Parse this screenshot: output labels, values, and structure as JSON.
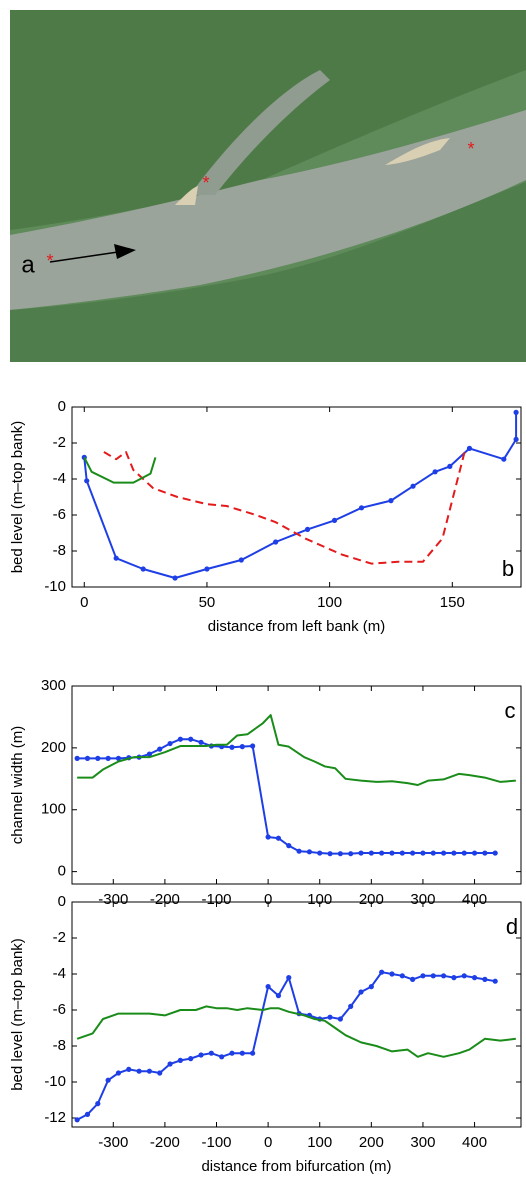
{
  "panel_a": {
    "label": "a"
  },
  "chart_data": [
    {
      "type": "line",
      "panel_label": "b",
      "xlabel": "distance from left bank (m)",
      "ylabel": "bed level (m–top bank)",
      "xlim": [
        -5,
        178
      ],
      "xticks": [
        0,
        50,
        100,
        150
      ],
      "ylim": [
        -10,
        0
      ],
      "yticks": [
        -10,
        -8,
        -6,
        -4,
        -2,
        0
      ],
      "grid": false,
      "series": [
        {
          "color": "#1f3fe6",
          "markers": true,
          "dash": false,
          "x": [
            0,
            1,
            13,
            24,
            37,
            50,
            64,
            78,
            91,
            102,
            113,
            125,
            134,
            143,
            149,
            157,
            171,
            176,
            176
          ],
          "values": [
            -2.8,
            -4.1,
            -8.4,
            -9.0,
            -9.5,
            -9.0,
            -8.5,
            -7.5,
            -6.8,
            -6.3,
            -5.6,
            -5.2,
            -4.4,
            -3.6,
            -3.3,
            -2.3,
            -2.9,
            -1.8,
            -0.3
          ]
        },
        {
          "color": "#e41a1c",
          "markers": false,
          "dash": true,
          "x": [
            8,
            13,
            17,
            20,
            28,
            38,
            50,
            58,
            70,
            78,
            90,
            105,
            117,
            128,
            138,
            146,
            155
          ],
          "values": [
            -2.5,
            -2.9,
            -2.5,
            -3.5,
            -4.5,
            -5.0,
            -5.4,
            -5.5,
            -6.0,
            -6.4,
            -7.3,
            -8.2,
            -8.7,
            -8.6,
            -8.6,
            -7.3,
            -2.5
          ]
        },
        {
          "color": "#1a8c1a",
          "markers": false,
          "dash": false,
          "x": [
            0,
            3,
            12,
            20,
            27,
            29
          ],
          "values": [
            -2.8,
            -3.6,
            -4.2,
            -4.2,
            -3.7,
            -2.8
          ]
        }
      ]
    },
    {
      "type": "line",
      "panel_label": "c",
      "ylabel": "channel width (m)",
      "xlim": [
        -380,
        490
      ],
      "xticks": [
        -300,
        -200,
        -100,
        0,
        100,
        200,
        300,
        400
      ],
      "ylim": [
        -20,
        300
      ],
      "yticks": [
        0,
        100,
        200,
        300
      ],
      "grid": false,
      "series": [
        {
          "color": "#1f3fe6",
          "markers": true,
          "dash": false,
          "x": [
            -370,
            -350,
            -330,
            -310,
            -290,
            -270,
            -250,
            -230,
            -210,
            -190,
            -170,
            -150,
            -130,
            -110,
            -90,
            -70,
            -50,
            -30,
            0,
            20,
            40,
            60,
            80,
            100,
            120,
            140,
            160,
            180,
            200,
            220,
            240,
            260,
            280,
            300,
            320,
            340,
            360,
            380,
            400,
            420,
            440
          ],
          "values": [
            183,
            183,
            183,
            183,
            183,
            184,
            185,
            190,
            198,
            207,
            214,
            214,
            209,
            203,
            202,
            201,
            202,
            203,
            56,
            54,
            42,
            33,
            32,
            30,
            29,
            29,
            29,
            30,
            30,
            30,
            30,
            30,
            30,
            30,
            30,
            30,
            30,
            30,
            30,
            30,
            30
          ]
        },
        {
          "color": "#1a8c1a",
          "markers": false,
          "dash": false,
          "x": [
            -370,
            -340,
            -320,
            -290,
            -260,
            -230,
            -200,
            -170,
            -140,
            -120,
            -100,
            -80,
            -60,
            -40,
            -10,
            5,
            20,
            40,
            70,
            90,
            110,
            130,
            150,
            180,
            210,
            240,
            270,
            290,
            310,
            340,
            370,
            390,
            420,
            450,
            480
          ],
          "values": [
            152,
            152,
            165,
            178,
            185,
            185,
            193,
            203,
            203,
            203,
            205,
            205,
            220,
            222,
            240,
            253,
            205,
            202,
            185,
            178,
            170,
            167,
            150,
            147,
            145,
            146,
            143,
            140,
            147,
            149,
            158,
            156,
            152,
            145,
            147
          ]
        }
      ]
    },
    {
      "type": "line",
      "panel_label": "d",
      "xlabel": "distance from bifurcation (m)",
      "ylabel": "bed level (m–top bank)",
      "xlim": [
        -380,
        490
      ],
      "xticks": [
        -300,
        -200,
        -100,
        0,
        100,
        200,
        300,
        400
      ],
      "ylim": [
        -12.5,
        0
      ],
      "yticks": [
        -12,
        -10,
        -8,
        -6,
        -4,
        -2,
        0
      ],
      "grid": false,
      "series": [
        {
          "color": "#1f3fe6",
          "markers": true,
          "dash": false,
          "x": [
            -370,
            -350,
            -330,
            -310,
            -290,
            -270,
            -250,
            -230,
            -210,
            -190,
            -170,
            -150,
            -130,
            -110,
            -90,
            -70,
            -50,
            -30,
            0,
            20,
            40,
            60,
            80,
            100,
            120,
            140,
            160,
            180,
            200,
            220,
            240,
            260,
            280,
            300,
            320,
            340,
            360,
            380,
            400,
            420,
            440
          ],
          "values": [
            -12.1,
            -11.8,
            -11.2,
            -9.9,
            -9.5,
            -9.3,
            -9.4,
            -9.4,
            -9.5,
            -9.0,
            -8.8,
            -8.7,
            -8.5,
            -8.4,
            -8.6,
            -8.4,
            -8.4,
            -8.4,
            -4.7,
            -5.2,
            -4.2,
            -6.2,
            -6.3,
            -6.5,
            -6.4,
            -6.5,
            -5.8,
            -5.0,
            -4.7,
            -3.9,
            -4.0,
            -4.1,
            -4.3,
            -4.1,
            -4.1,
            -4.1,
            -4.2,
            -4.1,
            -4.2,
            -4.3,
            -4.4
          ]
        },
        {
          "color": "#1a8c1a",
          "markers": false,
          "dash": false,
          "x": [
            -370,
            -340,
            -320,
            -290,
            -260,
            -230,
            -200,
            -170,
            -140,
            -120,
            -100,
            -80,
            -60,
            -40,
            -10,
            5,
            20,
            40,
            70,
            90,
            110,
            130,
            150,
            180,
            210,
            240,
            270,
            290,
            310,
            340,
            370,
            390,
            420,
            450,
            480
          ],
          "values": [
            -7.6,
            -7.3,
            -6.5,
            -6.2,
            -6.2,
            -6.2,
            -6.3,
            -6.0,
            -6.0,
            -5.8,
            -5.9,
            -5.9,
            -6.0,
            -5.9,
            -6.0,
            -5.9,
            -5.9,
            -6.1,
            -6.3,
            -6.5,
            -6.6,
            -7.0,
            -7.4,
            -7.8,
            -8.0,
            -8.3,
            -8.2,
            -8.6,
            -8.4,
            -8.6,
            -8.4,
            -8.2,
            -7.6,
            -7.7,
            -7.6
          ]
        }
      ]
    }
  ]
}
